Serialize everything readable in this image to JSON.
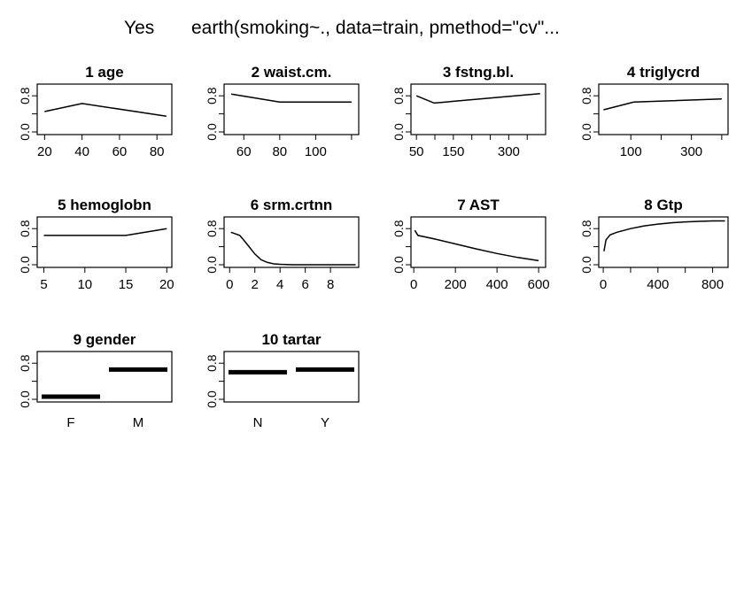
{
  "header": {
    "response_label": "Yes",
    "model_call": "earth(smoking~., data=train, pmethod=\"cv\"..."
  },
  "chart_data": [
    {
      "type": "line",
      "index": "1",
      "title": "age",
      "xlim": [
        17,
        87
      ],
      "ylim": [
        0,
        1
      ],
      "x_ticks": [
        20,
        40,
        60,
        80
      ],
      "x_tick_labels": [
        "20",
        "40",
        "60",
        "80"
      ],
      "y_ticks": [
        0.0,
        0.4,
        0.8
      ],
      "y_tick_labels": [
        "0.0",
        "",
        "0.8"
      ],
      "series": [
        {
          "x": [
            20,
            40,
            85
          ],
          "y": [
            0.45,
            0.63,
            0.35
          ]
        }
      ]
    },
    {
      "type": "line",
      "index": "2",
      "title": "waist.cm.",
      "xlim": [
        50,
        123
      ],
      "ylim": [
        0,
        1
      ],
      "x_ticks": [
        60,
        80,
        100,
        120
      ],
      "x_tick_labels": [
        "60",
        "80",
        "100",
        ""
      ],
      "y_ticks": [
        0.0,
        0.4,
        0.8
      ],
      "y_tick_labels": [
        "0.0",
        "",
        "0.8"
      ],
      "series": [
        {
          "x": [
            53,
            80,
            120
          ],
          "y": [
            0.84,
            0.66,
            0.66
          ]
        }
      ]
    },
    {
      "type": "line",
      "index": "3",
      "title": "fstng.bl.",
      "xlim": [
        40,
        395
      ],
      "ylim": [
        0,
        1
      ],
      "x_ticks": [
        50,
        100,
        150,
        200,
        250,
        300,
        350
      ],
      "x_tick_labels": [
        "50",
        "",
        "150",
        "",
        "",
        "300",
        ""
      ],
      "y_ticks": [
        0.0,
        0.4,
        0.8
      ],
      "y_tick_labels": [
        "0.0",
        "",
        "0.8"
      ],
      "series": [
        {
          "x": [
            50,
            98,
            385
          ],
          "y": [
            0.8,
            0.64,
            0.85
          ]
        }
      ]
    },
    {
      "type": "line",
      "index": "4",
      "title": "triglycrd",
      "xlim": [
        0,
        415
      ],
      "ylim": [
        0,
        1
      ],
      "x_ticks": [
        100,
        200,
        300,
        400
      ],
      "x_tick_labels": [
        "100",
        "",
        "300",
        ""
      ],
      "y_ticks": [
        0.0,
        0.4,
        0.8
      ],
      "y_tick_labels": [
        "0.0",
        "",
        "0.8"
      ],
      "series": [
        {
          "x": [
            10,
            110,
            400
          ],
          "y": [
            0.49,
            0.66,
            0.73
          ]
        }
      ]
    },
    {
      "type": "line",
      "index": "5",
      "title": "hemoglobn",
      "xlim": [
        4.4,
        20.4
      ],
      "ylim": [
        0,
        1
      ],
      "x_ticks": [
        5,
        10,
        15,
        20
      ],
      "x_tick_labels": [
        "5",
        "10",
        "15",
        "20"
      ],
      "y_ticks": [
        0.0,
        0.4,
        0.8
      ],
      "y_tick_labels": [
        "0.0",
        "",
        "0.8"
      ],
      "series": [
        {
          "x": [
            5,
            15,
            20
          ],
          "y": [
            0.65,
            0.65,
            0.8
          ]
        }
      ]
    },
    {
      "type": "line",
      "index": "6",
      "title": "srm.crtnn",
      "xlim": [
        -0.3,
        10.1
      ],
      "ylim": [
        0,
        1
      ],
      "x_ticks": [
        0,
        2,
        4,
        6,
        8
      ],
      "x_tick_labels": [
        "0",
        "2",
        "4",
        "6",
        "8"
      ],
      "y_ticks": [
        0.0,
        0.4,
        0.8
      ],
      "y_tick_labels": [
        "0.0",
        "",
        "0.8"
      ],
      "series": [
        {
          "x": [
            0.1,
            0.5,
            0.8,
            1.2,
            1.6,
            2.0,
            2.5,
            3.0,
            3.5,
            4.0,
            5.0,
            6.0,
            8.0,
            10.0
          ],
          "y": [
            0.72,
            0.68,
            0.65,
            0.52,
            0.38,
            0.24,
            0.11,
            0.05,
            0.02,
            0.01,
            0.0,
            0.0,
            0.0,
            0.0
          ]
        }
      ]
    },
    {
      "type": "line",
      "index": "7",
      "title": "AST",
      "xlim": [
        -5,
        625
      ],
      "ylim": [
        0,
        1
      ],
      "x_ticks": [
        0,
        200,
        400,
        600
      ],
      "x_tick_labels": [
        "0",
        "200",
        "400",
        "600"
      ],
      "y_ticks": [
        0.0,
        0.4,
        0.8
      ],
      "y_tick_labels": [
        "0.0",
        "",
        "0.8"
      ],
      "series": [
        {
          "x": [
            5,
            20,
            100,
            200,
            300,
            400,
            500,
            600
          ],
          "y": [
            0.76,
            0.65,
            0.57,
            0.46,
            0.35,
            0.25,
            0.16,
            0.09
          ]
        }
      ]
    },
    {
      "type": "line",
      "index": "8",
      "title": "Gtp",
      "xlim": [
        -20,
        900
      ],
      "ylim": [
        0,
        1
      ],
      "x_ticks": [
        0,
        200,
        400,
        600,
        800
      ],
      "x_tick_labels": [
        "0",
        "",
        "400",
        "",
        "800"
      ],
      "y_ticks": [
        0.0,
        0.4,
        0.8
      ],
      "y_tick_labels": [
        "0.0",
        "",
        "0.8"
      ],
      "series": [
        {
          "x": [
            5,
            20,
            50,
            100,
            200,
            300,
            400,
            500,
            600,
            700,
            800,
            890
          ],
          "y": [
            0.3,
            0.55,
            0.66,
            0.72,
            0.8,
            0.86,
            0.9,
            0.93,
            0.95,
            0.96,
            0.97,
            0.97
          ]
        }
      ]
    },
    {
      "type": "bar",
      "index": "9",
      "title": "gender",
      "categories": [
        "F",
        "M"
      ],
      "values": [
        0.06,
        0.66
      ],
      "ylim": [
        0,
        1
      ],
      "y_ticks": [
        0.0,
        0.4,
        0.8
      ],
      "y_tick_labels": [
        "0.0",
        "",
        "0.8"
      ]
    },
    {
      "type": "bar",
      "index": "10",
      "title": "tartar",
      "categories": [
        "N",
        "Y"
      ],
      "values": [
        0.6,
        0.66
      ],
      "ylim": [
        0,
        1
      ],
      "y_ticks": [
        0.0,
        0.4,
        0.8
      ],
      "y_tick_labels": [
        "0.0",
        "",
        "0.8"
      ]
    }
  ]
}
